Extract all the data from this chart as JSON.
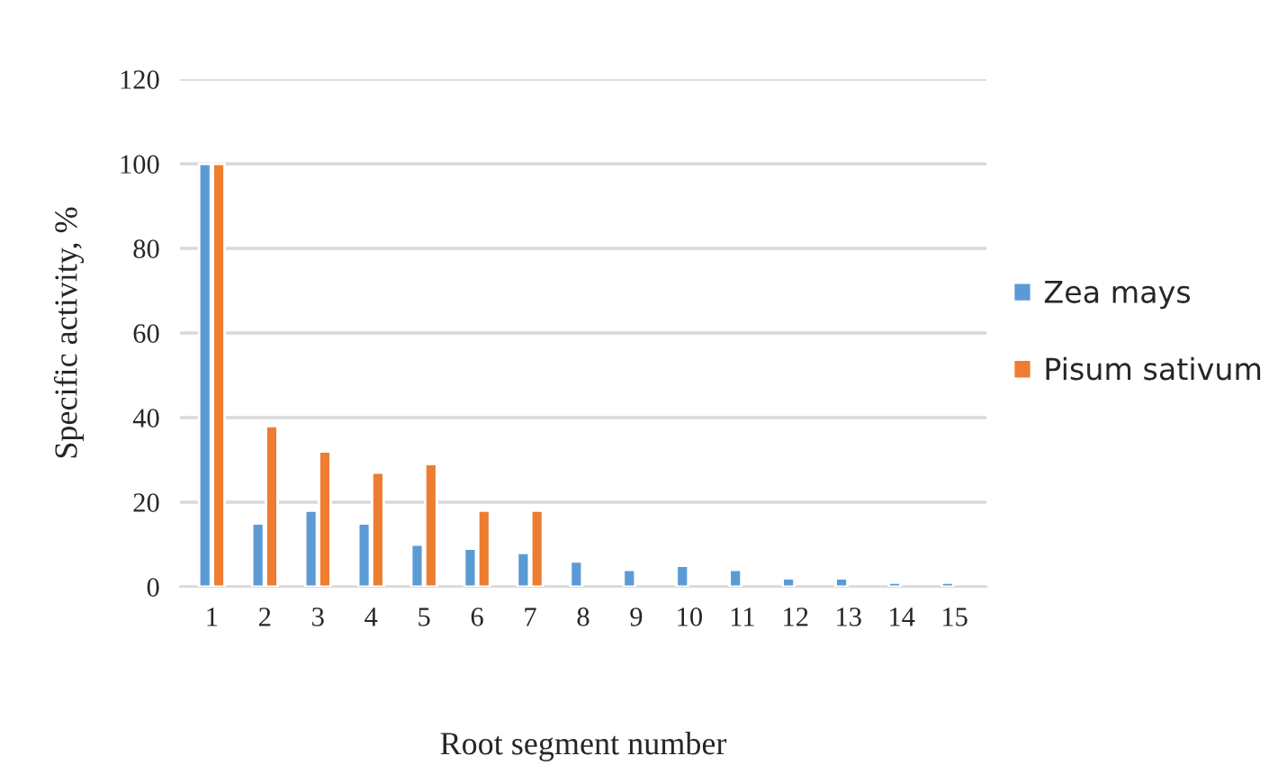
{
  "chart_data": {
    "type": "bar",
    "xlabel": "Root segment number",
    "ylabel": "Specific activity, %",
    "categories": [
      "1",
      "2",
      "3",
      "4",
      "5",
      "6",
      "7",
      "8",
      "9",
      "10",
      "11",
      "12",
      "13",
      "14",
      "15"
    ],
    "series": [
      {
        "name": "Zea mays",
        "color": "#5b9bd5",
        "values": [
          100,
          15,
          18,
          15,
          10,
          9,
          8,
          6,
          4,
          5,
          4,
          2,
          2,
          1,
          1
        ]
      },
      {
        "name": "Pisum sativum",
        "color": "#ed7d31",
        "values": [
          100,
          38,
          32,
          27,
          29,
          18,
          18,
          null,
          null,
          null,
          null,
          null,
          null,
          null,
          null
        ]
      }
    ],
    "ylim": [
      0,
      120
    ],
    "yticks": [
      0,
      20,
      40,
      60,
      80,
      100,
      120
    ],
    "grid": "y",
    "legend": "right"
  }
}
